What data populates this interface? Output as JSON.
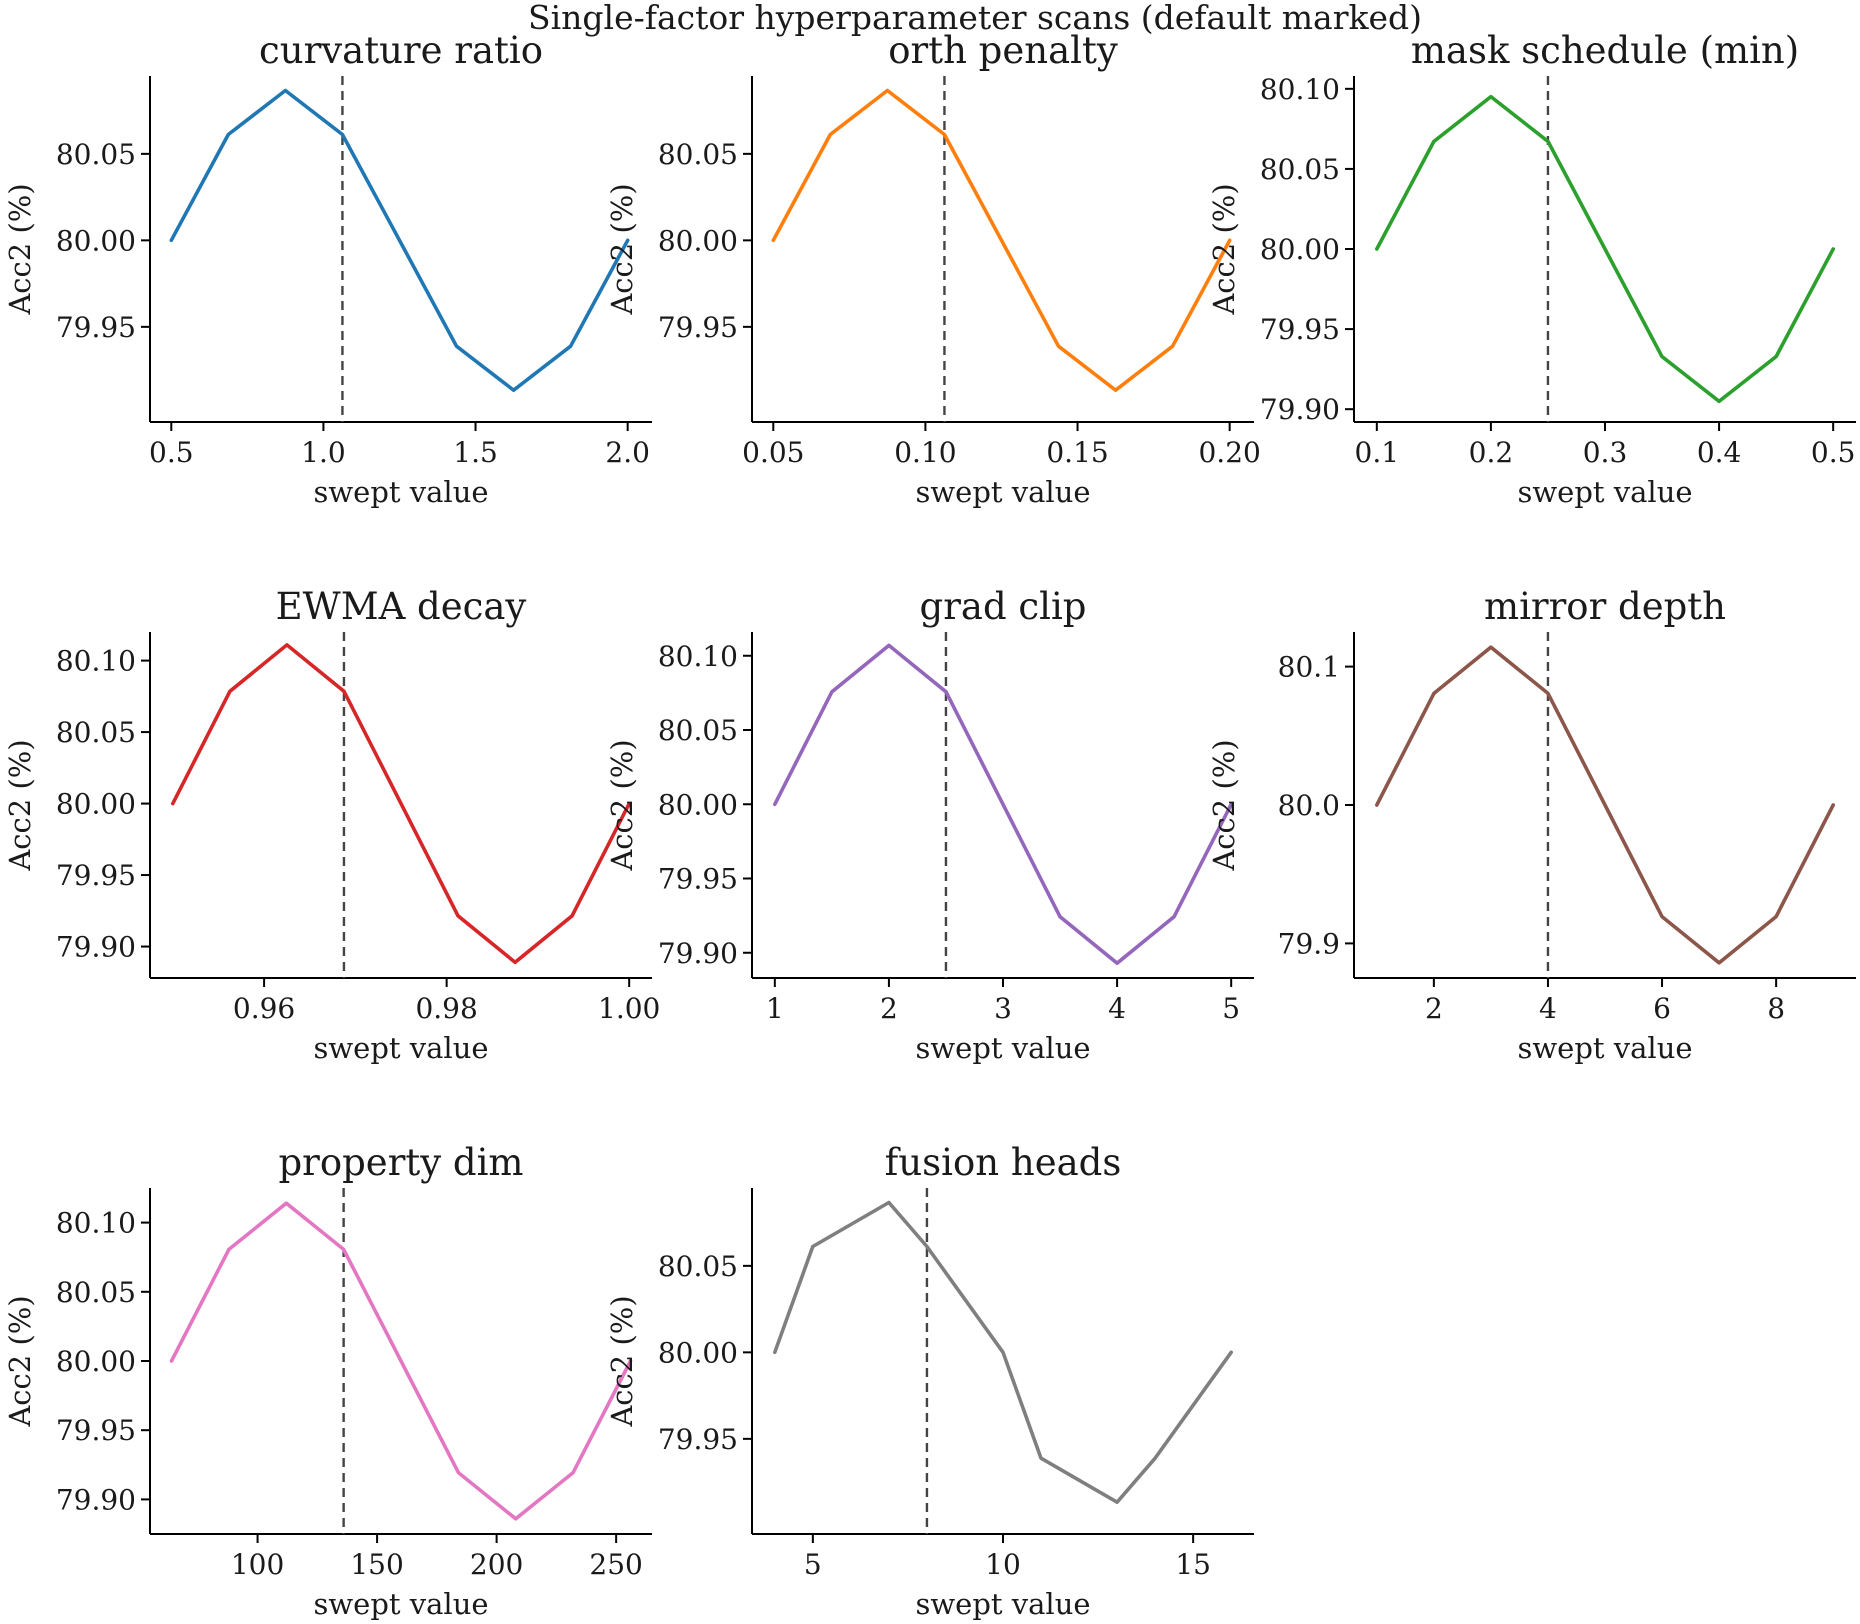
{
  "figure_title": "Single-factor hyperparameter scans (default marked)",
  "chart_data": [
    {
      "type": "line",
      "title": "curvature ratio",
      "xlabel": "swept value",
      "ylabel": "Acc2 (%)",
      "color": "#1f77b4",
      "x": [
        0.5,
        0.6875,
        0.875,
        1.0625,
        1.25,
        1.4375,
        1.625,
        1.8125,
        2.0
      ],
      "y": [
        80.0,
        80.0612,
        80.0866,
        80.0612,
        80.0,
        79.9388,
        79.9134,
        79.9388,
        80.0
      ],
      "default": 1.0625,
      "xlim": [
        0.43,
        2.08
      ],
      "ylim": [
        79.895,
        80.095
      ],
      "xticks": [
        0.5,
        1.0,
        1.5,
        2.0
      ],
      "xtick_labels": [
        "0.5",
        "1.0",
        "1.5",
        "2.0"
      ],
      "yticks": [
        79.95,
        80.0,
        80.05
      ],
      "ytick_labels": [
        "79.95",
        "80.00",
        "80.05"
      ]
    },
    {
      "type": "line",
      "title": "orth penalty",
      "xlabel": "swept value",
      "ylabel": "Acc2 (%)",
      "color": "#ff7f0e",
      "x": [
        0.05,
        0.06875,
        0.0875,
        0.10625,
        0.125,
        0.14375,
        0.1625,
        0.18125,
        0.2
      ],
      "y": [
        80.0,
        80.0612,
        80.0866,
        80.0612,
        80.0,
        79.9388,
        79.9134,
        79.9388,
        80.0
      ],
      "default": 0.10625,
      "xlim": [
        0.043,
        0.208
      ],
      "ylim": [
        79.895,
        80.095
      ],
      "xticks": [
        0.05,
        0.1,
        0.15,
        0.2
      ],
      "xtick_labels": [
        "0.05",
        "0.10",
        "0.15",
        "0.20"
      ],
      "yticks": [
        79.95,
        80.0,
        80.05
      ],
      "ytick_labels": [
        "79.95",
        "80.00",
        "80.05"
      ]
    },
    {
      "type": "line",
      "title": "mask schedule (min)",
      "xlabel": "swept value",
      "ylabel": "Acc2 (%)",
      "color": "#2ca02c",
      "x": [
        0.1,
        0.15,
        0.2,
        0.25,
        0.3,
        0.35,
        0.4,
        0.45,
        0.5
      ],
      "y": [
        80.0,
        80.0672,
        80.0951,
        80.0672,
        80.0,
        79.9328,
        79.9049,
        79.9328,
        80.0
      ],
      "default": 0.25,
      "xlim": [
        0.08,
        0.52
      ],
      "ylim": [
        79.892,
        80.108
      ],
      "xticks": [
        0.1,
        0.2,
        0.3,
        0.4,
        0.5
      ],
      "xtick_labels": [
        "0.1",
        "0.2",
        "0.3",
        "0.4",
        "0.5"
      ],
      "yticks": [
        79.9,
        79.95,
        80.0,
        80.05,
        80.1
      ],
      "ytick_labels": [
        "79.90",
        "79.95",
        "80.00",
        "80.05",
        "80.10"
      ]
    },
    {
      "type": "line",
      "title": "EWMA decay",
      "xlabel": "swept value",
      "ylabel": "Acc2 (%)",
      "color": "#d62728",
      "x": [
        0.95,
        0.95625,
        0.9625,
        0.96875,
        0.975,
        0.98125,
        0.9875,
        0.99375,
        1.0
      ],
      "y": [
        80.0,
        80.0785,
        80.111,
        80.0785,
        80.0,
        79.9215,
        79.889,
        79.9215,
        80.0
      ],
      "default": 0.96875,
      "xlim": [
        0.9475,
        1.0025
      ],
      "ylim": [
        79.878,
        80.12
      ],
      "xticks": [
        0.96,
        0.98,
        1.0
      ],
      "xtick_labels": [
        "0.96",
        "0.98",
        "1.00"
      ],
      "yticks": [
        79.9,
        79.95,
        80.0,
        80.05,
        80.1
      ],
      "ytick_labels": [
        "79.90",
        "79.95",
        "80.00",
        "80.05",
        "80.10"
      ]
    },
    {
      "type": "line",
      "title": "grad clip",
      "xlabel": "swept value",
      "ylabel": "Acc2 (%)",
      "color": "#9467bd",
      "x": [
        1,
        1.5,
        2,
        2.5,
        3,
        3.5,
        4,
        4.5,
        5
      ],
      "y": [
        80.0,
        80.0757,
        80.107,
        80.0757,
        80.0,
        79.9243,
        79.893,
        79.9243,
        80.0
      ],
      "default": 2.5,
      "xlim": [
        0.8,
        5.2
      ],
      "ylim": [
        79.883,
        80.116
      ],
      "xticks": [
        1,
        2,
        3,
        4,
        5
      ],
      "xtick_labels": [
        "1",
        "2",
        "3",
        "4",
        "5"
      ],
      "yticks": [
        79.9,
        79.95,
        80.0,
        80.05,
        80.1
      ],
      "ytick_labels": [
        "79.90",
        "79.95",
        "80.00",
        "80.05",
        "80.10"
      ]
    },
    {
      "type": "line",
      "title": "mirror depth",
      "xlabel": "swept value",
      "ylabel": "Acc2 (%)",
      "color": "#8c564b",
      "x": [
        1,
        2,
        3,
        4,
        5,
        6,
        7,
        8,
        9
      ],
      "y": [
        80.0,
        80.0806,
        80.114,
        80.0806,
        80.0,
        79.9194,
        79.886,
        79.9194,
        80.0
      ],
      "default": 4,
      "xlim": [
        0.6,
        9.4
      ],
      "ylim": [
        79.875,
        80.125
      ],
      "xticks": [
        2,
        4,
        6,
        8
      ],
      "xtick_labels": [
        "2",
        "4",
        "6",
        "8"
      ],
      "yticks": [
        79.9,
        80.0,
        80.1
      ],
      "ytick_labels": [
        "79.9",
        "80.0",
        "80.1"
      ]
    },
    {
      "type": "line",
      "title": "property dim",
      "xlabel": "swept value",
      "ylabel": "Acc2 (%)",
      "color": "#e377c2",
      "x": [
        64,
        88,
        112,
        136,
        160,
        184,
        208,
        232,
        256
      ],
      "y": [
        80.0,
        80.0806,
        80.114,
        80.0806,
        80.0,
        79.9194,
        79.886,
        79.9194,
        80.0
      ],
      "default": 136,
      "xlim": [
        55,
        265
      ],
      "ylim": [
        79.875,
        80.125
      ],
      "xticks": [
        100,
        150,
        200,
        250
      ],
      "xtick_labels": [
        "100",
        "150",
        "200",
        "250"
      ],
      "yticks": [
        79.9,
        79.95,
        80.0,
        80.05,
        80.1
      ],
      "ytick_labels": [
        "79.90",
        "79.95",
        "80.00",
        "80.05",
        "80.10"
      ]
    },
    {
      "type": "line",
      "title": "fusion heads",
      "xlabel": "swept value",
      "ylabel": "Acc2 (%)",
      "color": "#7f7f7f",
      "x": [
        4,
        5,
        7,
        8,
        10,
        11,
        13,
        14,
        16
      ],
      "y": [
        80.0,
        80.0612,
        80.0866,
        80.0612,
        80.0,
        79.9388,
        79.9134,
        79.9388,
        80.0
      ],
      "default": 8,
      "xlim": [
        3.4,
        16.6
      ],
      "ylim": [
        79.895,
        80.095
      ],
      "xticks": [
        5,
        10,
        15
      ],
      "xtick_labels": [
        "5",
        "10",
        "15"
      ],
      "yticks": [
        79.95,
        80.0,
        80.05
      ],
      "ytick_labels": [
        "79.95",
        "80.00",
        "80.05"
      ]
    }
  ]
}
